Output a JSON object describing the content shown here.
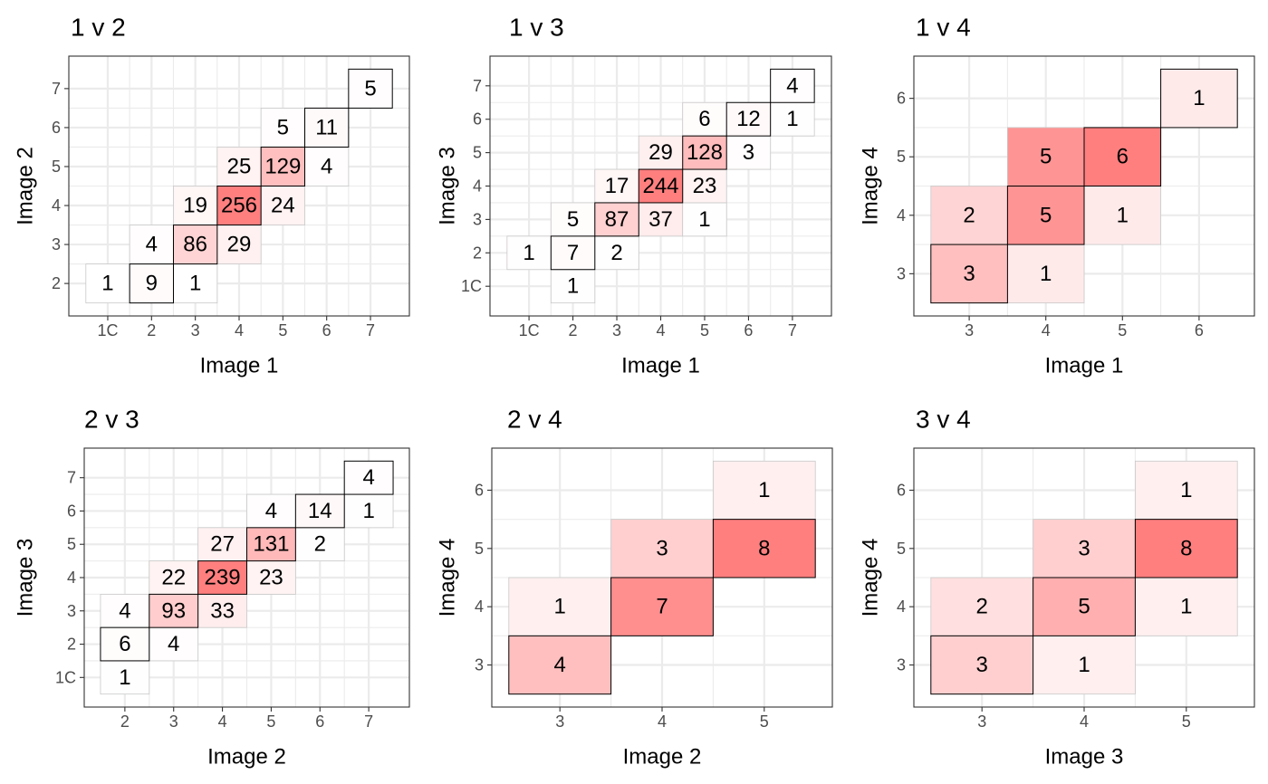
{
  "chart_data": [
    {
      "type": "heatmap",
      "title": "1 v 2",
      "xlabel": "Image 1",
      "ylabel": "Image 2",
      "x_categories": [
        "1C",
        "2",
        "3",
        "4",
        "5",
        "6",
        "7"
      ],
      "y_categories": [
        "2",
        "3",
        "4",
        "5",
        "6",
        "7"
      ],
      "cells": [
        {
          "x": "1C",
          "y": "2",
          "value": 1
        },
        {
          "x": "2",
          "y": "2",
          "value": 9
        },
        {
          "x": "3",
          "y": "2",
          "value": 1
        },
        {
          "x": "2",
          "y": "3",
          "value": 4
        },
        {
          "x": "3",
          "y": "3",
          "value": 86
        },
        {
          "x": "4",
          "y": "3",
          "value": 29
        },
        {
          "x": "3",
          "y": "4",
          "value": 19
        },
        {
          "x": "4",
          "y": "4",
          "value": 256
        },
        {
          "x": "5",
          "y": "4",
          "value": 24
        },
        {
          "x": "4",
          "y": "5",
          "value": 25
        },
        {
          "x": "5",
          "y": "5",
          "value": 129
        },
        {
          "x": "6",
          "y": "5",
          "value": 4
        },
        {
          "x": "5",
          "y": "6",
          "value": 5
        },
        {
          "x": "6",
          "y": "6",
          "value": 11
        },
        {
          "x": "7",
          "y": "7",
          "value": 5
        }
      ]
    },
    {
      "type": "heatmap",
      "title": "1 v 3",
      "xlabel": "Image 1",
      "ylabel": "Image 3",
      "x_categories": [
        "1C",
        "2",
        "3",
        "4",
        "5",
        "6",
        "7"
      ],
      "y_categories": [
        "1C",
        "2",
        "3",
        "4",
        "5",
        "6",
        "7"
      ],
      "cells": [
        {
          "x": "2",
          "y": "1C",
          "value": 1
        },
        {
          "x": "1C",
          "y": "2",
          "value": 1
        },
        {
          "x": "2",
          "y": "2",
          "value": 7
        },
        {
          "x": "3",
          "y": "2",
          "value": 2
        },
        {
          "x": "2",
          "y": "3",
          "value": 5
        },
        {
          "x": "3",
          "y": "3",
          "value": 87
        },
        {
          "x": "4",
          "y": "3",
          "value": 37
        },
        {
          "x": "5",
          "y": "3",
          "value": 1
        },
        {
          "x": "3",
          "y": "4",
          "value": 17
        },
        {
          "x": "4",
          "y": "4",
          "value": 244
        },
        {
          "x": "5",
          "y": "4",
          "value": 23
        },
        {
          "x": "4",
          "y": "5",
          "value": 29
        },
        {
          "x": "5",
          "y": "5",
          "value": 128
        },
        {
          "x": "6",
          "y": "5",
          "value": 3
        },
        {
          "x": "5",
          "y": "6",
          "value": 6
        },
        {
          "x": "6",
          "y": "6",
          "value": 12
        },
        {
          "x": "7",
          "y": "6",
          "value": 1
        },
        {
          "x": "7",
          "y": "7",
          "value": 4
        }
      ]
    },
    {
      "type": "heatmap",
      "title": "1 v 4",
      "xlabel": "Image 1",
      "ylabel": "Image 4",
      "x_categories": [
        "3",
        "4",
        "5",
        "6"
      ],
      "y_categories": [
        "3",
        "4",
        "5",
        "6"
      ],
      "cells": [
        {
          "x": "3",
          "y": "3",
          "value": 3
        },
        {
          "x": "4",
          "y": "3",
          "value": 1
        },
        {
          "x": "3",
          "y": "4",
          "value": 2
        },
        {
          "x": "4",
          "y": "4",
          "value": 5
        },
        {
          "x": "5",
          "y": "4",
          "value": 1
        },
        {
          "x": "4",
          "y": "5",
          "value": 5
        },
        {
          "x": "5",
          "y": "5",
          "value": 6
        },
        {
          "x": "6",
          "y": "6",
          "value": 1
        }
      ]
    },
    {
      "type": "heatmap",
      "title": "2 v 3",
      "xlabel": "Image 2",
      "ylabel": "Image 3",
      "x_categories": [
        "2",
        "3",
        "4",
        "5",
        "6",
        "7"
      ],
      "y_categories": [
        "1C",
        "2",
        "3",
        "4",
        "5",
        "6",
        "7"
      ],
      "cells": [
        {
          "x": "2",
          "y": "1C",
          "value": 1
        },
        {
          "x": "2",
          "y": "2",
          "value": 6
        },
        {
          "x": "3",
          "y": "2",
          "value": 4
        },
        {
          "x": "2",
          "y": "3",
          "value": 4
        },
        {
          "x": "3",
          "y": "3",
          "value": 93
        },
        {
          "x": "4",
          "y": "3",
          "value": 33
        },
        {
          "x": "3",
          "y": "4",
          "value": 22
        },
        {
          "x": "4",
          "y": "4",
          "value": 239
        },
        {
          "x": "5",
          "y": "4",
          "value": 23
        },
        {
          "x": "4",
          "y": "5",
          "value": 27
        },
        {
          "x": "5",
          "y": "5",
          "value": 131
        },
        {
          "x": "6",
          "y": "5",
          "value": 2
        },
        {
          "x": "5",
          "y": "6",
          "value": 4
        },
        {
          "x": "6",
          "y": "6",
          "value": 14
        },
        {
          "x": "7",
          "y": "6",
          "value": 1
        },
        {
          "x": "7",
          "y": "7",
          "value": 4
        }
      ]
    },
    {
      "type": "heatmap",
      "title": "2 v 4",
      "xlabel": "Image 2",
      "ylabel": "Image 4",
      "x_categories": [
        "3",
        "4",
        "5"
      ],
      "y_categories": [
        "3",
        "4",
        "5",
        "6"
      ],
      "cells": [
        {
          "x": "3",
          "y": "3",
          "value": 4
        },
        {
          "x": "3",
          "y": "4",
          "value": 1
        },
        {
          "x": "4",
          "y": "4",
          "value": 7
        },
        {
          "x": "4",
          "y": "5",
          "value": 3
        },
        {
          "x": "5",
          "y": "5",
          "value": 8
        },
        {
          "x": "5",
          "y": "6",
          "value": 1
        }
      ]
    },
    {
      "type": "heatmap",
      "title": "3 v 4",
      "xlabel": "Image 3",
      "ylabel": "Image 4",
      "x_categories": [
        "3",
        "4",
        "5"
      ],
      "y_categories": [
        "3",
        "4",
        "5",
        "6"
      ],
      "cells": [
        {
          "x": "3",
          "y": "3",
          "value": 3
        },
        {
          "x": "4",
          "y": "3",
          "value": 1
        },
        {
          "x": "3",
          "y": "4",
          "value": 2
        },
        {
          "x": "4",
          "y": "4",
          "value": 5
        },
        {
          "x": "5",
          "y": "4",
          "value": 1
        },
        {
          "x": "4",
          "y": "5",
          "value": 3
        },
        {
          "x": "5",
          "y": "5",
          "value": 8
        },
        {
          "x": "5",
          "y": "6",
          "value": 1
        }
      ]
    }
  ],
  "colors": {
    "fill_low": "#ffffff",
    "fill_high": "#ff7f7f",
    "grid": "#ebebeb",
    "panel_border": "#333333",
    "tick": "#4d4d4d",
    "tile_border": "#c8c8c8",
    "diagonal_border": "#000000"
  }
}
